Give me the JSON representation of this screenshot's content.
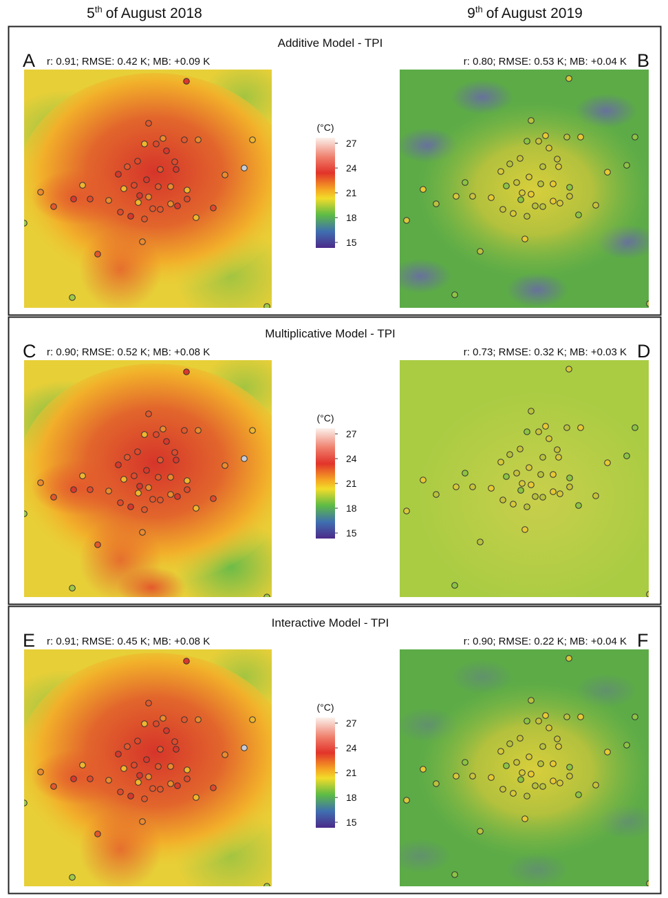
{
  "header": {
    "left": {
      "day": "5",
      "suffix": "th",
      "rest": "of August 2018"
    },
    "right": {
      "day": "9",
      "suffix": "th",
      "rest": "of August 2019"
    }
  },
  "panels": [
    {
      "title": "Additive Model - TPI",
      "left": {
        "letter": "A",
        "stats": "r: 0.91; RMSE: 0.42 K; MB: +0.09 K"
      },
      "right": {
        "letter": "B",
        "stats": "r: 0.80; RMSE: 0.53 K; MB: +0.04 K"
      }
    },
    {
      "title": "Multiplicative Model - TPI",
      "left": {
        "letter": "C",
        "stats": "r: 0.90; RMSE: 0.52 K; MB: +0.08 K"
      },
      "right": {
        "letter": "D",
        "stats": "r: 0.73; RMSE: 0.32 K; MB: +0.03 K"
      }
    },
    {
      "title": "Interactive Model - TPI",
      "left": {
        "letter": "E",
        "stats": "r: 0.91; RMSE: 0.45 K; MB: +0.08 K"
      },
      "right": {
        "letter": "F",
        "stats": "r: 0.90; RMSE: 0.22 K; MB: +0.04 K"
      }
    }
  ],
  "colorbar": {
    "unit": "(°C)",
    "ticks": [
      27,
      24,
      21,
      18,
      15
    ]
  }
}
